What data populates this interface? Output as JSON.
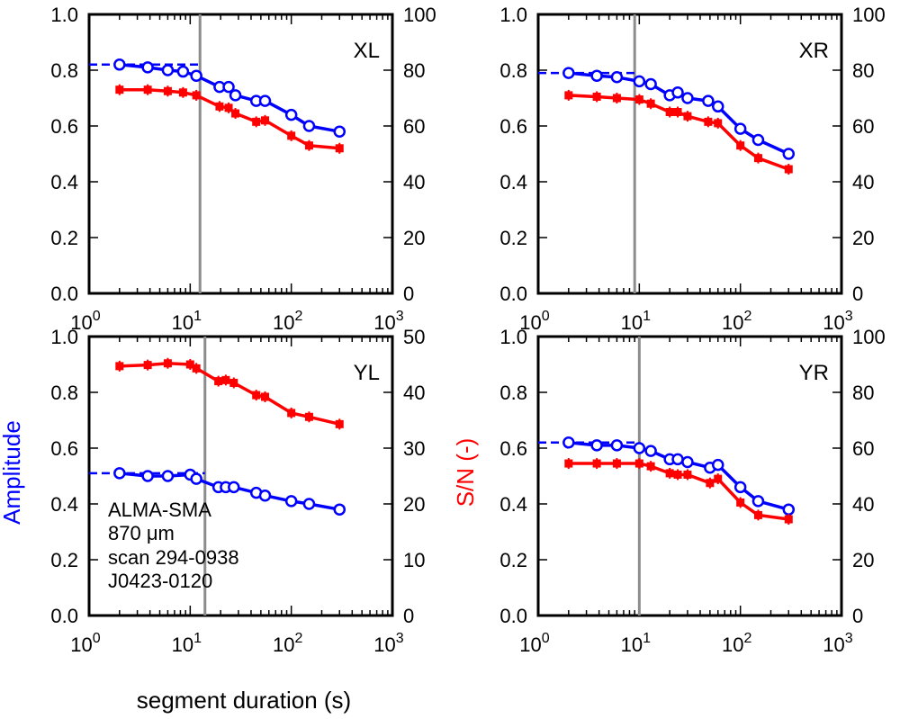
{
  "figure": {
    "xlabel": "segment duration (s)",
    "ylabel_left": "Amplitude",
    "ylabel_right": "S/N (-)",
    "colors": {
      "amplitude": "#0000ff",
      "snr": "#ff0000",
      "vline": "#8c8c8c",
      "axis": "#000000"
    },
    "x_tick_labels": [
      {
        "base": "10",
        "exp": "0"
      },
      {
        "base": "10",
        "exp": "1"
      },
      {
        "base": "10",
        "exp": "2"
      },
      {
        "base": "10",
        "exp": "3"
      }
    ],
    "annotation_lines": [
      "ALMA-SMA",
      "870 μm",
      "scan 294-0938",
      "J0423-0120"
    ]
  },
  "chart_data": [
    {
      "type": "line",
      "label": "XL",
      "xscale": "log",
      "xlim": [
        1,
        1000
      ],
      "ylim": [
        0,
        1.0
      ],
      "y_ticks": [
        "0.0",
        "0.2",
        "0.4",
        "0.6",
        "0.8",
        "1.0"
      ],
      "y2lim": [
        0,
        100
      ],
      "y2_ticks": [
        "0",
        "20",
        "40",
        "60",
        "80",
        "100"
      ],
      "vline_x": 12.5,
      "amplitude_ref": {
        "value": 0.82,
        "x_range": [
          1,
          12.5
        ]
      },
      "x": [
        2,
        3.8,
        6,
        8.5,
        11.5,
        19.5,
        24,
        28,
        45,
        55,
        100,
        150,
        300
      ],
      "series": [
        {
          "name": "Amplitude",
          "axis": "left",
          "marker": "open-circle",
          "values": [
            0.82,
            0.81,
            0.8,
            0.795,
            0.78,
            0.74,
            0.74,
            0.71,
            0.69,
            0.69,
            0.64,
            0.6,
            0.58
          ]
        },
        {
          "name": "S/N",
          "axis": "right",
          "marker": "filled-square",
          "values": [
            73,
            73,
            72.5,
            72,
            71,
            67,
            66.5,
            64.5,
            61.5,
            62,
            56.5,
            53,
            52
          ]
        }
      ]
    },
    {
      "type": "line",
      "label": "XR",
      "xscale": "log",
      "xlim": [
        1,
        1000
      ],
      "ylim": [
        0,
        1.0
      ],
      "y_ticks": [
        "0.0",
        "0.2",
        "0.4",
        "0.6",
        "0.8",
        "1.0"
      ],
      "y2lim": [
        0,
        100
      ],
      "y2_ticks": [
        "0",
        "20",
        "40",
        "60",
        "80",
        "100"
      ],
      "vline_x": 9,
      "amplitude_ref": {
        "value": 0.79,
        "x_range": [
          1,
          9
        ]
      },
      "x": [
        2,
        3.8,
        6,
        10,
        13,
        20,
        24,
        30,
        48,
        60,
        100,
        150,
        300
      ],
      "series": [
        {
          "name": "Amplitude",
          "axis": "left",
          "marker": "open-circle",
          "values": [
            0.79,
            0.78,
            0.775,
            0.76,
            0.75,
            0.71,
            0.72,
            0.7,
            0.69,
            0.67,
            0.59,
            0.55,
            0.5
          ]
        },
        {
          "name": "S/N",
          "axis": "right",
          "marker": "filled-square",
          "values": [
            71,
            70.5,
            70,
            69.5,
            68,
            65,
            65,
            63.5,
            61.5,
            61,
            53,
            48.5,
            44.5
          ]
        }
      ]
    },
    {
      "type": "line",
      "label": "YL",
      "xscale": "log",
      "xlim": [
        1,
        1000
      ],
      "ylim": [
        0,
        1.0
      ],
      "y_ticks": [
        "0.0",
        "0.2",
        "0.4",
        "0.6",
        "0.8",
        "1.0"
      ],
      "y2lim": [
        0,
        50
      ],
      "y2_ticks": [
        "0",
        "10",
        "20",
        "30",
        "40",
        "50"
      ],
      "vline_x": 14,
      "amplitude_ref": {
        "value": 0.51,
        "x_range": [
          1,
          14
        ]
      },
      "x": [
        2,
        3.8,
        6,
        10,
        11.5,
        19,
        22.5,
        27,
        45,
        55,
        100,
        150,
        300
      ],
      "series": [
        {
          "name": "Amplitude",
          "axis": "left",
          "marker": "open-circle",
          "values": [
            0.51,
            0.5,
            0.5,
            0.505,
            0.49,
            0.46,
            0.46,
            0.46,
            0.44,
            0.43,
            0.41,
            0.4,
            0.38
          ]
        },
        {
          "name": "S/N",
          "axis": "right",
          "marker": "filled-square",
          "values": [
            44.7,
            44.9,
            45.2,
            45.0,
            44.3,
            42.0,
            42.2,
            41.7,
            39.5,
            39.2,
            36.3,
            35.6,
            34.3
          ]
        }
      ]
    },
    {
      "type": "line",
      "label": "YR",
      "xscale": "log",
      "xlim": [
        1,
        1000
      ],
      "ylim": [
        0,
        1.0
      ],
      "y_ticks": [
        "0.0",
        "0.2",
        "0.4",
        "0.6",
        "0.8",
        "1.0"
      ],
      "y2lim": [
        0,
        100
      ],
      "y2_ticks": [
        "0",
        "20",
        "40",
        "60",
        "80",
        "100"
      ],
      "vline_x": 10,
      "amplitude_ref": {
        "value": 0.62,
        "x_range": [
          1,
          10
        ]
      },
      "x": [
        2,
        3.8,
        6,
        10,
        13,
        20,
        24,
        30,
        50,
        60,
        100,
        150,
        300
      ],
      "series": [
        {
          "name": "Amplitude",
          "axis": "left",
          "marker": "open-circle",
          "values": [
            0.62,
            0.61,
            0.61,
            0.6,
            0.59,
            0.56,
            0.56,
            0.55,
            0.53,
            0.54,
            0.46,
            0.41,
            0.38
          ]
        },
        {
          "name": "S/N",
          "axis": "right",
          "marker": "filled-square",
          "values": [
            54.5,
            54.5,
            54.5,
            54.5,
            53.5,
            51,
            50.5,
            50.5,
            47.5,
            49,
            40.5,
            36,
            34.5
          ]
        }
      ]
    }
  ]
}
